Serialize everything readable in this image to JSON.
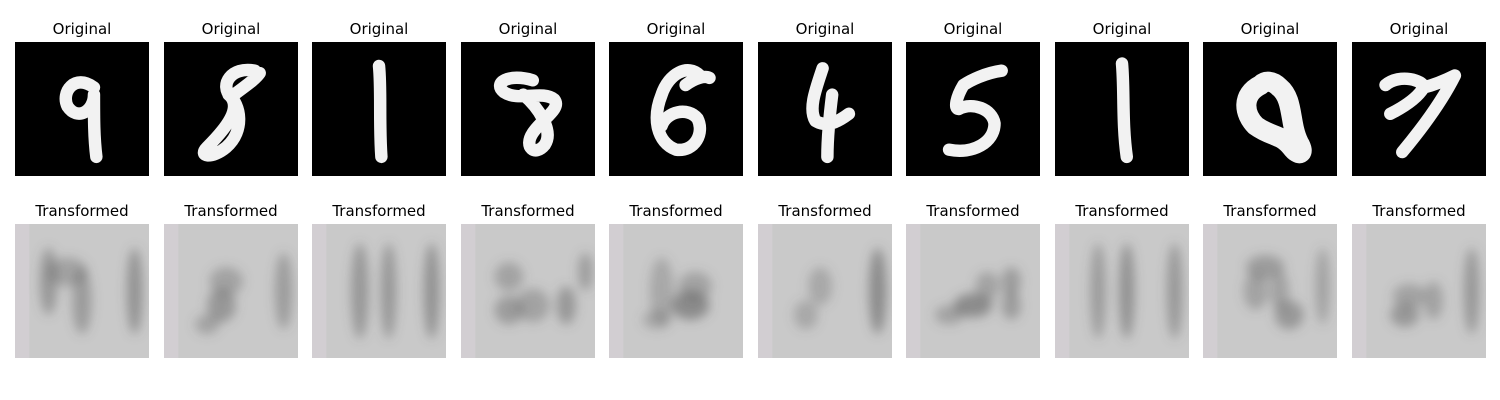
{
  "labels": {
    "original": "Original",
    "transformed": "Transformed"
  },
  "colors": {
    "original_background": "#000000",
    "original_stroke": "#f2f2f2",
    "transformed_background": "#c9c9c9",
    "transformed_stroke": "#5a5a5a",
    "title_text": "#000000"
  },
  "pairs": [
    {
      "original_digit": "9"
    },
    {
      "original_digit": "8"
    },
    {
      "original_digit": "1"
    },
    {
      "original_digit": "8"
    },
    {
      "original_digit": "6"
    },
    {
      "original_digit": "4"
    },
    {
      "original_digit": "5"
    },
    {
      "original_digit": "1"
    },
    {
      "original_digit": "9"
    },
    {
      "original_digit": "7"
    }
  ]
}
